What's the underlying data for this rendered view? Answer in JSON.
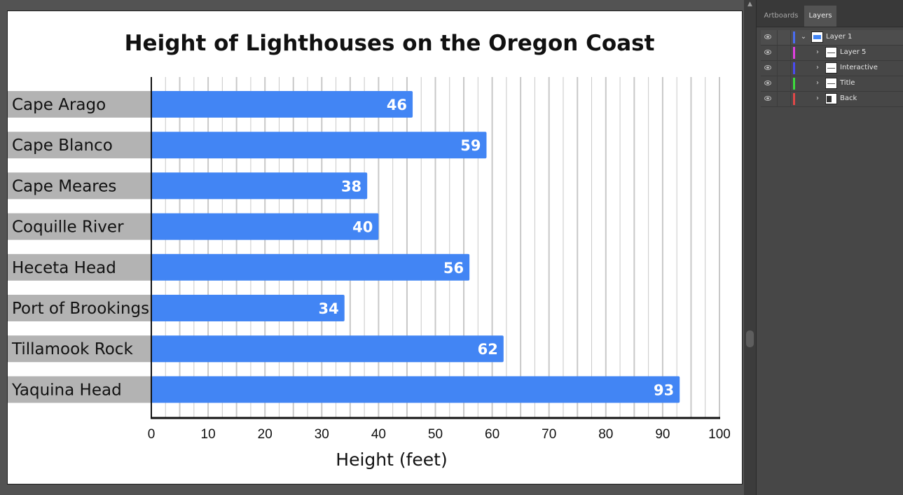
{
  "chart_data": {
    "type": "bar",
    "orientation": "horizontal",
    "title": "Height of Lighthouses on the Oregon Coast",
    "xlabel": "Height (feet)",
    "ylabel": "",
    "categories": [
      "Cape Arago",
      "Cape Blanco",
      "Cape Meares",
      "Coquille River",
      "Heceta Head",
      "Port of Brookings",
      "Tillamook Rock",
      "Yaquina Head"
    ],
    "values": [
      46,
      59,
      38,
      40,
      56,
      34,
      62,
      93
    ],
    "xlim": [
      0,
      100
    ],
    "x_ticks": [
      0,
      10,
      20,
      30,
      40,
      50,
      60,
      70,
      80,
      90,
      100
    ],
    "tick_labels": [
      "0",
      "10",
      "20",
      "30",
      "40",
      "50",
      "60",
      "70",
      "80",
      "90",
      "100"
    ],
    "data_labels": [
      "46",
      "59",
      "38",
      "40",
      "56",
      "34",
      "62",
      "93"
    ],
    "grid": true,
    "bar_color": "#4285f4",
    "label_box_color": "#b3b3b3",
    "grid_color": "#c8c8c8"
  },
  "panel": {
    "tabs": [
      {
        "label": "Artboards",
        "active": false
      },
      {
        "label": "Layers",
        "active": true
      }
    ],
    "layers": [
      {
        "name": "Layer 1",
        "color": "#4a6cf0",
        "expanded": true,
        "chevron": "chevron-down-icon"
      },
      {
        "name": "Layer 5",
        "color": "#e040e0",
        "expanded": false,
        "chevron": "chevron-right-icon"
      },
      {
        "name": "Interactive",
        "color": "#4a4af0",
        "expanded": false,
        "chevron": "chevron-right-icon"
      },
      {
        "name": "Title",
        "color": "#3ddc3d",
        "expanded": false,
        "chevron": "chevron-right-icon"
      },
      {
        "name": "Back",
        "color": "#e04848",
        "expanded": false,
        "chevron": "chevron-right-icon"
      }
    ],
    "icons": {
      "visibility": "eye-icon",
      "scroll_up": "chevron-up-icon"
    }
  }
}
